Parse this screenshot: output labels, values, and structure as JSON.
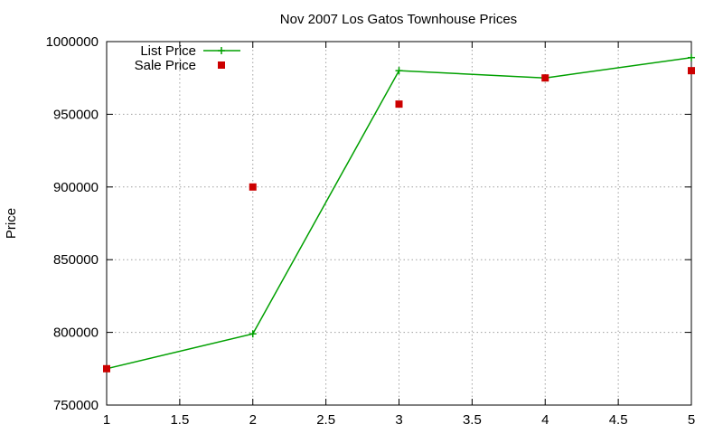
{
  "chart_data": {
    "type": "line",
    "title": "Nov 2007 Los Gatos Townhouse Prices",
    "ylabel": "Price",
    "xlabel": "",
    "xlim": [
      1,
      5
    ],
    "ylim": [
      750000,
      1000000
    ],
    "xticks": [
      "1",
      "1.5",
      "2",
      "2.5",
      "3",
      "3.5",
      "4",
      "4.5",
      "5"
    ],
    "yticks": [
      "750000",
      "800000",
      "850000",
      "900000",
      "950000",
      "1000000"
    ],
    "grid": true,
    "legend_position": "top-left",
    "series": [
      {
        "name": "List Price",
        "style": "linespoints",
        "marker": "plus",
        "color": "#00a000",
        "x": [
          1,
          2,
          3,
          4,
          5
        ],
        "y": [
          775000,
          799000,
          980000,
          975000,
          989000
        ]
      },
      {
        "name": "Sale Price",
        "style": "points",
        "marker": "square",
        "color": "#cc0000",
        "x": [
          1,
          2,
          3,
          4,
          5
        ],
        "y": [
          775000,
          900000,
          957000,
          975000,
          980000
        ]
      }
    ]
  }
}
